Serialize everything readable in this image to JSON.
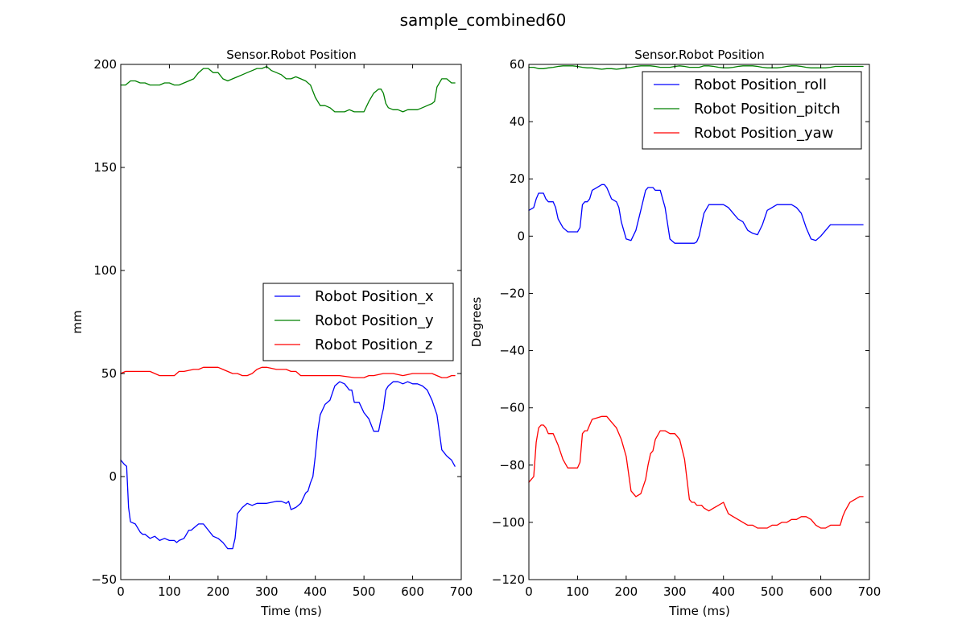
{
  "figure": {
    "title": "sample_combined60"
  },
  "chart_data": [
    {
      "type": "line",
      "title": "Sensor.Robot Position",
      "xlabel": "Time (ms)",
      "ylabel": "mm",
      "xlim": [
        0,
        700
      ],
      "ylim": [
        -50,
        200
      ],
      "xticks": [
        "0",
        "100",
        "200",
        "300",
        "400",
        "500",
        "600",
        "700"
      ],
      "yticks": [
        "−50",
        "0",
        "50",
        "100",
        "150",
        "200"
      ],
      "xtick_values": [
        0,
        100,
        200,
        300,
        400,
        500,
        600,
        700
      ],
      "ytick_values": [
        -50,
        0,
        50,
        100,
        150,
        200
      ],
      "legend": {
        "placement": "center-right"
      },
      "series": [
        {
          "name": "Robot Position_x",
          "color": "#0000ff",
          "x": [
            0,
            7,
            12,
            16,
            20,
            30,
            40,
            45,
            50,
            60,
            70,
            80,
            90,
            100,
            110,
            115,
            120,
            130,
            140,
            145,
            150,
            160,
            170,
            180,
            190,
            200,
            210,
            220,
            230,
            235,
            240,
            250,
            260,
            270,
            280,
            290,
            300,
            320,
            330,
            340,
            345,
            350,
            360,
            370,
            380,
            385,
            390,
            395,
            400,
            405,
            410,
            420,
            425,
            430,
            440,
            450,
            460,
            470,
            475,
            480,
            490,
            500,
            510,
            515,
            520,
            530,
            535,
            540,
            545,
            550,
            560,
            570,
            580,
            590,
            600,
            610,
            620,
            625,
            630,
            640,
            650,
            660,
            670,
            680,
            687
          ],
          "y": [
            8,
            6,
            5,
            -15,
            -22,
            -23,
            -27,
            -28,
            -28,
            -30,
            -29,
            -31,
            -30,
            -31,
            -31,
            -32,
            -31,
            -30,
            -26,
            -26,
            -25,
            -23,
            -23,
            -26,
            -29,
            -30,
            -32,
            -35,
            -35,
            -30,
            -18,
            -15,
            -13,
            -14,
            -13,
            -13,
            -13,
            -12,
            -12,
            -13,
            -12,
            -16,
            -15,
            -13,
            -8,
            -7,
            -3,
            0,
            10,
            22,
            30,
            35,
            36,
            37,
            44,
            46,
            45,
            42,
            42,
            36,
            36,
            31,
            28,
            25,
            22,
            22,
            28,
            33,
            42,
            44,
            46,
            46,
            45,
            46,
            45,
            45,
            44,
            43,
            42,
            37,
            30,
            13,
            10,
            8,
            5
          ]
        },
        {
          "name": "Robot Position_y",
          "color": "#008000",
          "x": [
            0,
            10,
            15,
            20,
            30,
            40,
            50,
            60,
            70,
            80,
            90,
            100,
            110,
            120,
            130,
            140,
            150,
            160,
            170,
            180,
            190,
            200,
            210,
            220,
            230,
            240,
            250,
            260,
            270,
            280,
            290,
            300,
            310,
            320,
            330,
            340,
            350,
            360,
            370,
            380,
            390,
            400,
            410,
            420,
            430,
            440,
            450,
            460,
            470,
            480,
            490,
            500,
            510,
            520,
            530,
            535,
            540,
            545,
            550,
            560,
            570,
            580,
            590,
            600,
            610,
            620,
            630,
            640,
            645,
            650,
            660,
            670,
            680,
            687
          ],
          "y": [
            190,
            190,
            191,
            192,
            192,
            191,
            191,
            190,
            190,
            190,
            191,
            191,
            190,
            190,
            191,
            192,
            193,
            196,
            198,
            198,
            196,
            196,
            193,
            192,
            193,
            194,
            195,
            196,
            197,
            198,
            198,
            199,
            197,
            196,
            195,
            193,
            193,
            194,
            193,
            192,
            190,
            184,
            180,
            180,
            179,
            177,
            177,
            177,
            178,
            177,
            177,
            177,
            182,
            186,
            188,
            188,
            186,
            181,
            179,
            178,
            178,
            177,
            178,
            178,
            178,
            179,
            180,
            181,
            182,
            189,
            193,
            193,
            191,
            191
          ]
        },
        {
          "name": "Robot Position_z",
          "color": "#ff0000",
          "x": [
            0,
            10,
            20,
            30,
            50,
            60,
            70,
            80,
            100,
            110,
            120,
            130,
            150,
            160,
            170,
            190,
            200,
            210,
            230,
            240,
            250,
            260,
            270,
            280,
            290,
            300,
            320,
            340,
            350,
            360,
            370,
            400,
            420,
            450,
            480,
            500,
            510,
            520,
            540,
            560,
            580,
            600,
            620,
            640,
            650,
            660,
            670,
            680,
            687
          ],
          "y": [
            50,
            51,
            51,
            51,
            51,
            51,
            50,
            49,
            49,
            49,
            51,
            51,
            52,
            52,
            53,
            53,
            53,
            52,
            50,
            50,
            49,
            49,
            50,
            52,
            53,
            53,
            52,
            52,
            51,
            51,
            49,
            49,
            49,
            49,
            48,
            48,
            49,
            49,
            50,
            50,
            49,
            50,
            50,
            50,
            49,
            48,
            48,
            49,
            49
          ]
        }
      ]
    },
    {
      "type": "line",
      "title": "Sensor.Robot Position",
      "xlabel": "Time (ms)",
      "ylabel": "Degrees",
      "xlim": [
        0,
        700
      ],
      "ylim": [
        -120,
        60
      ],
      "xticks": [
        "0",
        "100",
        "200",
        "300",
        "400",
        "500",
        "600",
        "700"
      ],
      "yticks": [
        "−120",
        "−100",
        "−80",
        "−60",
        "−40",
        "−20",
        "0",
        "20",
        "40",
        "60"
      ],
      "xtick_values": [
        0,
        100,
        200,
        300,
        400,
        500,
        600,
        700
      ],
      "ytick_values": [
        -120,
        -100,
        -80,
        -60,
        -40,
        -20,
        0,
        20,
        40,
        60
      ],
      "legend": {
        "placement": "top-right"
      },
      "series": [
        {
          "name": "Robot Position_roll",
          "color": "#0000ff",
          "x": [
            0,
            10,
            15,
            20,
            25,
            30,
            35,
            40,
            45,
            50,
            55,
            60,
            70,
            80,
            90,
            100,
            105,
            110,
            115,
            120,
            125,
            130,
            140,
            150,
            155,
            160,
            170,
            180,
            185,
            190,
            200,
            210,
            220,
            230,
            240,
            245,
            250,
            255,
            260,
            270,
            280,
            290,
            300,
            310,
            320,
            330,
            335,
            340,
            345,
            350,
            355,
            360,
            370,
            380,
            390,
            400,
            410,
            420,
            430,
            440,
            450,
            460,
            470,
            480,
            490,
            500,
            510,
            520,
            530,
            540,
            550,
            560,
            570,
            580,
            590,
            600,
            610,
            620,
            630,
            640,
            650,
            655,
            660,
            670,
            680,
            687
          ],
          "y": [
            9,
            10,
            13,
            15,
            15,
            15,
            13,
            12,
            12,
            12,
            10,
            6,
            3,
            1.5,
            1.5,
            1.5,
            3,
            11,
            12,
            12,
            13,
            16,
            17,
            18,
            18,
            17,
            13,
            12,
            10,
            5,
            -1,
            -1.5,
            2,
            9,
            16,
            17,
            17,
            17,
            16,
            16,
            10,
            -1,
            -2.5,
            -2.5,
            -2.5,
            -2.5,
            -2.5,
            -2.5,
            -2,
            0,
            4,
            8,
            11,
            11,
            11,
            11,
            10,
            8,
            6,
            5,
            2,
            1,
            0.5,
            4,
            9,
            10,
            11,
            11,
            11,
            11,
            10,
            8,
            3,
            -1,
            -1.5,
            0,
            2,
            4,
            4,
            4,
            4,
            4,
            4,
            4,
            4,
            4
          ]
        },
        {
          "name": "Robot Position_pitch",
          "color": "#008000",
          "x": [
            0,
            10,
            20,
            30,
            40,
            50,
            60,
            70,
            80,
            90,
            100,
            110,
            120,
            130,
            140,
            150,
            160,
            170,
            180,
            190,
            200,
            210,
            220,
            230,
            240,
            250,
            260,
            270,
            280,
            290,
            300,
            310,
            320,
            330,
            340,
            350,
            360,
            370,
            380,
            390,
            400,
            410,
            420,
            430,
            440,
            450,
            460,
            470,
            480,
            490,
            500,
            510,
            520,
            530,
            540,
            550,
            560,
            570,
            580,
            590,
            600,
            610,
            620,
            630,
            640,
            650,
            660,
            670,
            680,
            687
          ],
          "y": [
            59,
            59,
            58.5,
            58.5,
            58.8,
            59,
            59.3,
            59.5,
            59.5,
            59.5,
            59.3,
            59,
            58.8,
            58.8,
            58.5,
            58.3,
            58.5,
            58.5,
            58.3,
            58.5,
            58.8,
            59,
            59.3,
            59.5,
            59.5,
            59.5,
            59.3,
            59,
            59,
            59,
            59.3,
            59.5,
            59.3,
            59,
            59,
            59,
            59.5,
            59.5,
            59.3,
            59,
            58.8,
            58.8,
            59,
            59.3,
            59.5,
            59.5,
            59.5,
            59.3,
            59,
            58.8,
            58.8,
            58.8,
            59,
            59.3,
            59.5,
            59.5,
            59.3,
            59,
            58.8,
            58.8,
            58.8,
            58.8,
            59,
            59.3,
            59.3,
            59.3,
            59.3,
            59.3,
            59.3,
            59.3
          ]
        },
        {
          "name": "Robot Position_yaw",
          "color": "#ff0000",
          "x": [
            0,
            5,
            10,
            15,
            20,
            25,
            30,
            35,
            40,
            45,
            50,
            60,
            70,
            80,
            90,
            100,
            105,
            110,
            115,
            120,
            125,
            130,
            140,
            150,
            160,
            170,
            180,
            190,
            200,
            210,
            220,
            230,
            240,
            245,
            250,
            255,
            260,
            270,
            280,
            290,
            300,
            310,
            320,
            330,
            335,
            340,
            345,
            350,
            355,
            360,
            370,
            380,
            390,
            400,
            410,
            420,
            430,
            440,
            450,
            460,
            470,
            480,
            490,
            500,
            510,
            520,
            530,
            540,
            550,
            560,
            570,
            580,
            590,
            600,
            610,
            620,
            630,
            640,
            645,
            650,
            660,
            670,
            680,
            687
          ],
          "y": [
            -86,
            -85,
            -84,
            -72,
            -67,
            -66,
            -66,
            -67,
            -69,
            -69,
            -69,
            -73,
            -78,
            -81,
            -81,
            -81,
            -79,
            -69,
            -68,
            -68,
            -66,
            -64,
            -63.5,
            -63,
            -63,
            -65,
            -67,
            -71,
            -77,
            -89,
            -91,
            -90,
            -85,
            -80,
            -76,
            -75,
            -71,
            -68,
            -68,
            -69,
            -69,
            -71,
            -78,
            -92,
            -93,
            -93,
            -94,
            -94,
            -94,
            -95,
            -96,
            -95,
            -94,
            -93,
            -97,
            -98,
            -99,
            -100,
            -101,
            -101,
            -102,
            -102,
            -102,
            -101,
            -101,
            -100,
            -100,
            -99,
            -99,
            -98,
            -98,
            -99,
            -101,
            -102,
            -102,
            -101,
            -101,
            -101,
            -98,
            -96,
            -93,
            -92,
            -91,
            -91
          ]
        }
      ]
    }
  ]
}
